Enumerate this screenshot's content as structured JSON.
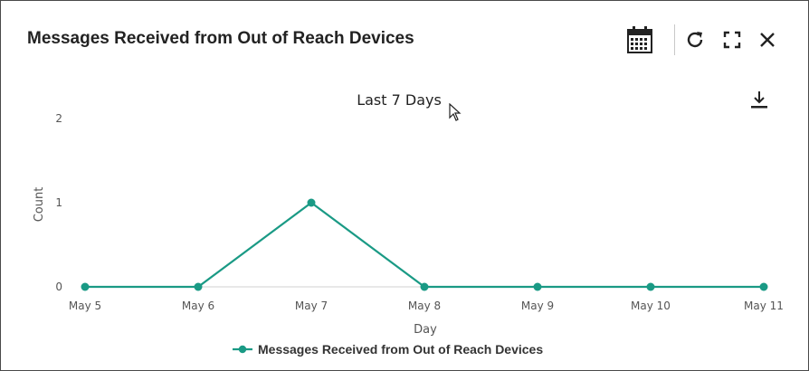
{
  "header": {
    "title": "Messages Received from Out of Reach Devices",
    "icons": [
      "calendar-icon",
      "refresh-icon",
      "expand-icon",
      "close-icon"
    ]
  },
  "chart_data": {
    "type": "line",
    "title": "Last 7 Days",
    "xlabel": "Day",
    "ylabel": "Count",
    "categories": [
      "May 5",
      "May 6",
      "May 7",
      "May 8",
      "May 9",
      "May 10",
      "May 11"
    ],
    "series": [
      {
        "name": "Messages Received from Out of Reach Devices",
        "values": [
          0,
          0,
          1,
          0,
          0,
          0,
          0
        ],
        "color": "#1a9a85"
      }
    ],
    "ylim": [
      0,
      2
    ],
    "yticks": [
      "0",
      "1",
      "2"
    ],
    "grid": false,
    "legend": "bottom-center"
  },
  "colors": {
    "accent": "#1a9a85",
    "text": "#222222",
    "axis": "#d0d0d0"
  }
}
